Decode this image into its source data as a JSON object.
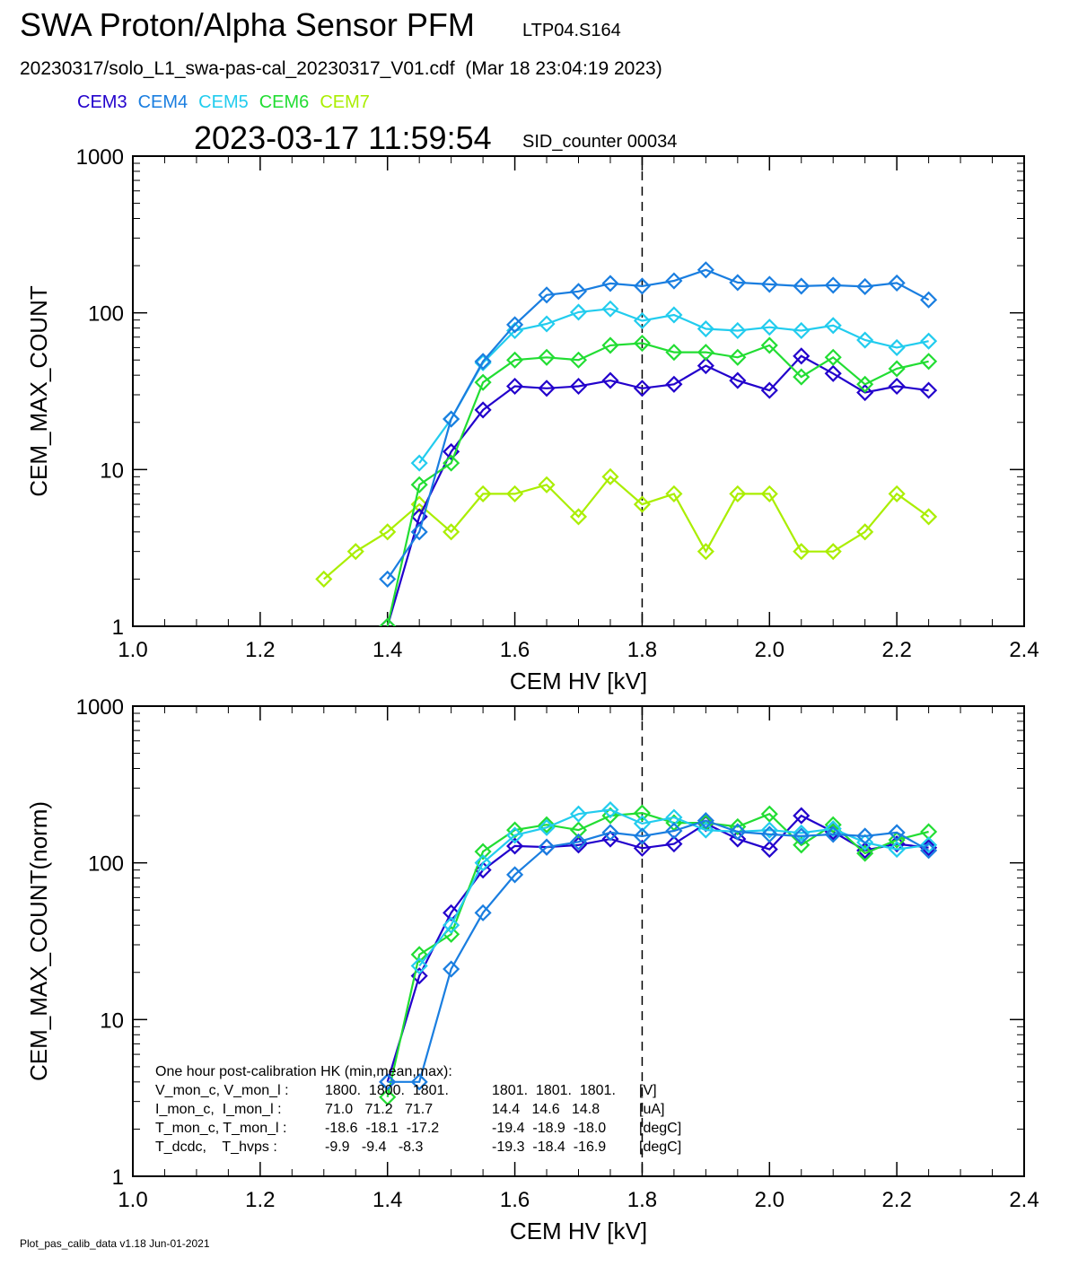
{
  "header": {
    "title": "SWA Proton/Alpha Sensor PFM",
    "subtitle": "LTP04.S164",
    "file_line": "20230317/solo_L1_swa-pas-cal_20230317_V01.cdf  (Mar 18 23:04:19 2023)",
    "timestamp": "2023-03-17 11:59:54",
    "sid": "SID_counter 00034"
  },
  "legend": [
    {
      "name": "CEM3",
      "color": "#2200cc"
    },
    {
      "name": "CEM4",
      "color": "#1a7ee0"
    },
    {
      "name": "CEM5",
      "color": "#22ccee"
    },
    {
      "name": "CEM6",
      "color": "#22dd33"
    },
    {
      "name": "CEM7",
      "color": "#aaee00"
    }
  ],
  "footer": "Plot_pas_calib_data v1.18 Jun-01-2021",
  "hk": {
    "title": "One hour post-calibration HK (min,mean,max):",
    "rows": [
      {
        "label": "V_mon_c, V_mon_l :",
        "c": "1800.  1800.  1801.",
        "l": "1801.  1801.  1801.",
        "unit": "[V]"
      },
      {
        "label": "I_mon_c,  I_mon_l :",
        "c": "71.0   71.2   71.7",
        "l": "14.4   14.6   14.8",
        "unit": "[uA]"
      },
      {
        "label": "T_mon_c, T_mon_l :",
        "c": "-18.6  -18.1  -17.2",
        "l": "-19.4  -18.9  -18.0",
        "unit": "[degC]"
      },
      {
        "label": "T_dcdc,    T_hvps :",
        "c": "-9.9   -9.4   -8.3",
        "l": "-19.3  -18.4  -16.9",
        "unit": "[degC]"
      }
    ]
  },
  "chart_data": [
    {
      "type": "line",
      "xlabel": "CEM HV [kV]",
      "ylabel": "CEM_MAX_COUNT",
      "xlim": [
        1.0,
        2.4
      ],
      "ylim": [
        1,
        1000
      ],
      "yscale": "log",
      "xticks": [
        "1.0",
        "1.2",
        "1.4",
        "1.6",
        "1.8",
        "2.0",
        "2.2",
        "2.4"
      ],
      "yticks": [
        "1",
        "10",
        "100",
        "1000"
      ],
      "marker": "diamond",
      "vline": 1.8,
      "series": [
        {
          "name": "CEM7",
          "color": "#aaee00",
          "x": [
            1.3,
            1.35,
            1.4,
            1.45,
            1.5,
            1.55,
            1.6,
            1.65,
            1.7,
            1.75,
            1.8,
            1.85,
            1.9,
            1.95,
            2.0,
            2.05,
            2.1,
            2.15,
            2.2,
            2.25
          ],
          "y": [
            2,
            3,
            4,
            6,
            4,
            7,
            7,
            8,
            5,
            9,
            6,
            7,
            3,
            7,
            7,
            3,
            3,
            4,
            7,
            5
          ]
        },
        {
          "name": "CEM3",
          "color": "#2200cc",
          "x": [
            1.4,
            1.45,
            1.5,
            1.55,
            1.6,
            1.65,
            1.7,
            1.75,
            1.8,
            1.85,
            1.9,
            1.95,
            2.0,
            2.05,
            2.1,
            2.15,
            2.2,
            2.25
          ],
          "y": [
            1,
            5,
            13,
            24,
            34,
            33,
            34,
            37,
            33,
            35,
            46,
            37,
            32,
            53,
            41,
            31,
            34,
            32
          ]
        },
        {
          "name": "CEM6",
          "color": "#22dd33",
          "x": [
            1.4,
            1.45,
            1.5,
            1.55,
            1.6,
            1.65,
            1.7,
            1.75,
            1.8,
            1.85,
            1.9,
            1.95,
            2.0,
            2.05,
            2.1,
            2.15,
            2.2,
            2.25
          ],
          "y": [
            1,
            8,
            11,
            36,
            50,
            52,
            50,
            62,
            64,
            56,
            56,
            52,
            62,
            39,
            52,
            35,
            44,
            49
          ]
        },
        {
          "name": "CEM5",
          "color": "#22ccee",
          "x": [
            1.45,
            1.5,
            1.55,
            1.6,
            1.65,
            1.7,
            1.75,
            1.8,
            1.85,
            1.9,
            1.95,
            2.0,
            2.05,
            2.1,
            2.15,
            2.2,
            2.25
          ],
          "y": [
            11,
            21,
            48,
            77,
            85,
            101,
            106,
            89,
            97,
            79,
            77,
            81,
            77,
            83,
            67,
            60,
            66
          ]
        },
        {
          "name": "CEM4",
          "color": "#1a7ee0",
          "x": [
            1.4,
            1.45,
            1.5,
            1.55,
            1.6,
            1.65,
            1.7,
            1.75,
            1.8,
            1.85,
            1.9,
            1.95,
            2.0,
            2.05,
            2.1,
            2.15,
            2.2,
            2.25
          ],
          "y": [
            2,
            4,
            21,
            49,
            84,
            130,
            137,
            154,
            148,
            160,
            188,
            156,
            152,
            148,
            150,
            147,
            155,
            121
          ]
        }
      ]
    },
    {
      "type": "line",
      "xlabel": "CEM HV [kV]",
      "ylabel": "CEM_MAX_COUNT(norm)",
      "xlim": [
        1.0,
        2.4
      ],
      "ylim": [
        1,
        1000
      ],
      "yscale": "log",
      "xticks": [
        "1.0",
        "1.2",
        "1.4",
        "1.6",
        "1.8",
        "2.0",
        "2.2",
        "2.4"
      ],
      "yticks": [
        "1",
        "10",
        "100",
        "1000"
      ],
      "marker": "diamond",
      "vline": 1.8,
      "series": [
        {
          "name": "CEM3",
          "color": "#2200cc",
          "x": [
            1.4,
            1.45,
            1.5,
            1.55,
            1.6,
            1.65,
            1.7,
            1.75,
            1.8,
            1.85,
            1.9,
            1.95,
            2.0,
            2.05,
            2.1,
            2.15,
            2.2,
            2.25
          ],
          "y": [
            4,
            19,
            48,
            90,
            128,
            126,
            130,
            142,
            124,
            132,
            178,
            142,
            122,
            200,
            158,
            120,
            132,
            125
          ]
        },
        {
          "name": "CEM6",
          "color": "#22dd33",
          "x": [
            1.4,
            1.45,
            1.5,
            1.55,
            1.6,
            1.65,
            1.7,
            1.75,
            1.8,
            1.85,
            1.9,
            1.95,
            2.0,
            2.05,
            2.1,
            2.15,
            2.2,
            2.25
          ],
          "y": [
            3.2,
            26,
            35,
            118,
            162,
            175,
            162,
            200,
            208,
            180,
            180,
            170,
            205,
            130,
            175,
            115,
            140,
            158
          ]
        },
        {
          "name": "CEM5",
          "color": "#22ccee",
          "x": [
            1.45,
            1.5,
            1.55,
            1.6,
            1.65,
            1.7,
            1.75,
            1.8,
            1.85,
            1.9,
            1.95,
            2.0,
            2.05,
            2.1,
            2.15,
            2.2,
            2.25
          ],
          "y": [
            22,
            40,
            100,
            150,
            168,
            205,
            218,
            178,
            195,
            162,
            158,
            162,
            155,
            165,
            135,
            122,
            130
          ]
        },
        {
          "name": "CEM4",
          "color": "#1a7ee0",
          "x": [
            1.4,
            1.45,
            1.5,
            1.55,
            1.6,
            1.65,
            1.7,
            1.75,
            1.8,
            1.85,
            1.9,
            1.95,
            2.0,
            2.05,
            2.1,
            2.15,
            2.2,
            2.25
          ],
          "y": [
            4,
            4,
            21,
            48,
            84,
            126,
            136,
            156,
            148,
            160,
            186,
            158,
            152,
            148,
            152,
            148,
            156,
            120
          ]
        }
      ]
    }
  ]
}
